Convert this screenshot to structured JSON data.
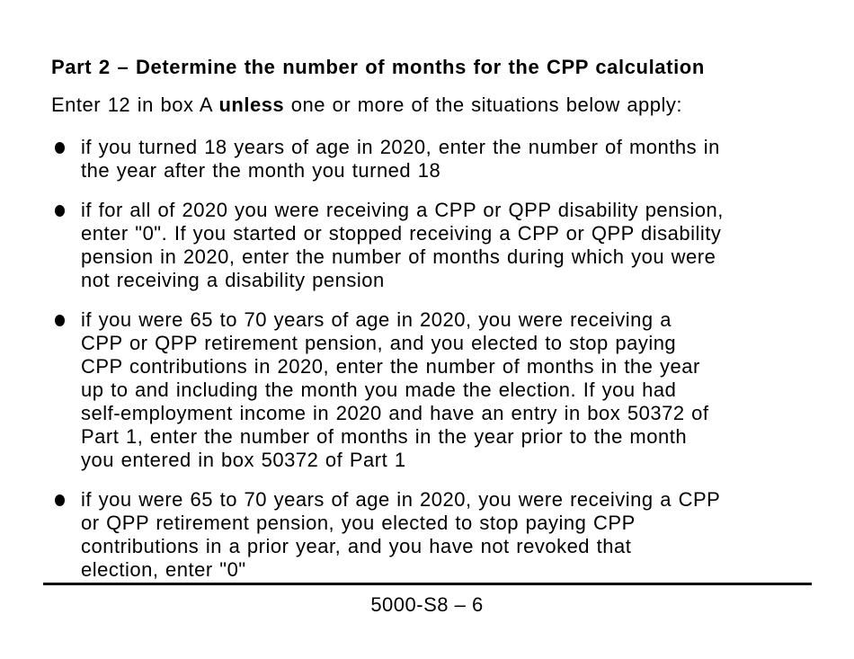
{
  "page": {
    "background": "#ffffff",
    "text_color": "#000000"
  },
  "heading": "Part 2 – Determine the number of months for the CPP calculation",
  "intro": {
    "pre": "Enter 12 in box A ",
    "bold": "unless",
    "post": " one or more of the situations below apply:"
  },
  "bullets": [
    {
      "lines": "if you turned 18 years of age in 2020, enter the number of months in\nthe year after the month you turned 18"
    },
    {
      "lines": "if for all of 2020 you were receiving a CPP or QPP disability pension,\nenter \"0\". If you started or stopped receiving a CPP or QPP disability\npension in 2020, enter the number of months during which you were\nnot receiving a disability pension"
    },
    {
      "lines": "if you were 65 to 70 years of age in 2020, you were receiving a\nCPP or QPP retirement pension, and you elected to stop paying\nCPP contributions in 2020, enter the number of months in the year\nup to and including the month you made the election. If you had\nself-employment income in 2020 and have an entry in box 50372 of\nPart 1, enter the number of months in the year prior to the month\nyou entered in box 50372 of Part 1"
    },
    {
      "lines": "if you were 65 to 70 years of age in 2020, you were receiving a CPP\nor QPP retirement pension, you elected to stop paying CPP\ncontributions in a prior year, and you have not revoked that\nelection, enter \"0\""
    }
  ],
  "footer": {
    "page_number": "5000-S8 – 6"
  }
}
